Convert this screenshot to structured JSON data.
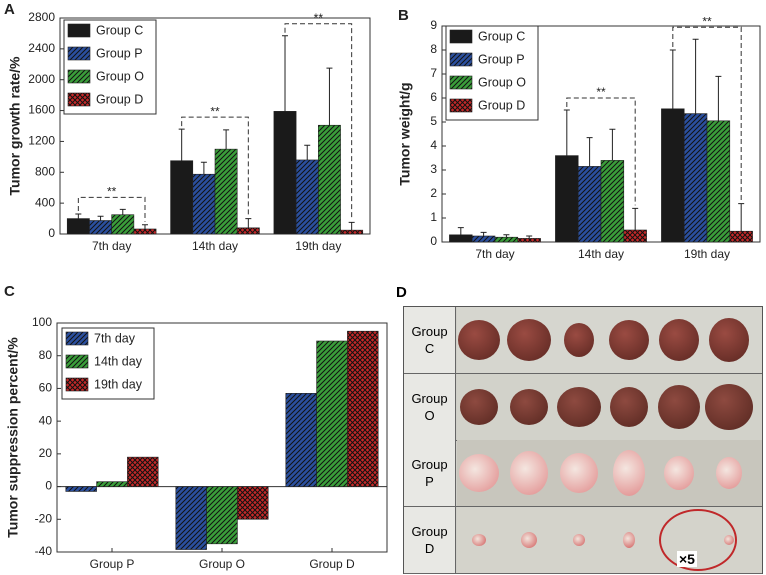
{
  "chart_data": [
    {
      "type": "bar",
      "panel": "A",
      "ylabel": "Tumor growth rate/%",
      "categories": [
        "7th day",
        "14th day",
        "19th day"
      ],
      "series": [
        {
          "name": "Group C",
          "color": "#1a1a1a",
          "pattern": "solid",
          "values": [
            200,
            950,
            1590
          ],
          "errors": [
            60,
            410,
            980
          ]
        },
        {
          "name": "Group P",
          "color": "#2b4f9e",
          "pattern": "hatch",
          "values": [
            175,
            775,
            960
          ],
          "errors": [
            55,
            155,
            190
          ]
        },
        {
          "name": "Group O",
          "color": "#3a9e3a",
          "pattern": "hatch",
          "values": [
            250,
            1100,
            1410
          ],
          "errors": [
            70,
            250,
            740
          ]
        },
        {
          "name": "Group D",
          "color": "#c62828",
          "pattern": "crosshatch",
          "values": [
            65,
            80,
            50
          ],
          "errors": [
            55,
            120,
            100
          ]
        }
      ],
      "significance": [
        "**",
        "**",
        "**"
      ],
      "ylim": [
        0,
        2800
      ],
      "yticks": [
        0,
        400,
        800,
        1200,
        1600,
        2000,
        2400,
        2800
      ],
      "legend": "upper left"
    },
    {
      "type": "bar",
      "panel": "B",
      "ylabel": "Tumor weight/g",
      "categories": [
        "7th day",
        "14th day",
        "19th day"
      ],
      "series": [
        {
          "name": "Group C",
          "color": "#1a1a1a",
          "pattern": "solid",
          "values": [
            0.3,
            3.6,
            5.55
          ],
          "errors": [
            0.3,
            1.9,
            2.45
          ]
        },
        {
          "name": "Group P",
          "color": "#2b4f9e",
          "pattern": "hatch",
          "values": [
            0.25,
            3.15,
            5.35
          ],
          "errors": [
            0.15,
            1.2,
            3.1
          ]
        },
        {
          "name": "Group O",
          "color": "#3a9e3a",
          "pattern": "hatch",
          "values": [
            0.2,
            3.4,
            5.05
          ],
          "errors": [
            0.1,
            1.3,
            1.85
          ]
        },
        {
          "name": "Group D",
          "color": "#c62828",
          "pattern": "crosshatch",
          "values": [
            0.15,
            0.5,
            0.45
          ],
          "errors": [
            0.1,
            0.9,
            1.15
          ]
        }
      ],
      "significance": [
        null,
        "**",
        "**"
      ],
      "ylim": [
        0,
        9
      ],
      "yticks": [
        0,
        1,
        2,
        3,
        4,
        5,
        6,
        7,
        8,
        9
      ],
      "legend": "upper left"
    },
    {
      "type": "bar",
      "panel": "C",
      "ylabel": "Tumor suppression percent/%",
      "categories": [
        "Group P",
        "Group O",
        "Group D"
      ],
      "series": [
        {
          "name": "7th day",
          "color": "#2b4f9e",
          "pattern": "hatch",
          "values": [
            -3,
            -38.5,
            57
          ]
        },
        {
          "name": "14th day",
          "color": "#3a9e3a",
          "pattern": "hatch",
          "values": [
            3,
            -35,
            89
          ]
        },
        {
          "name": "19th day",
          "color": "#c62828",
          "pattern": "crosshatch",
          "values": [
            18,
            -20,
            95
          ]
        }
      ],
      "ylim": [
        -40,
        100
      ],
      "yticks": [
        -40,
        -20,
        0,
        20,
        40,
        60,
        80,
        100
      ],
      "legend": "upper left"
    }
  ],
  "photo_panel": {
    "panel": "D",
    "rows": [
      "Group C",
      "Group O",
      "Group P",
      "Group D"
    ],
    "annotation": "×5"
  }
}
